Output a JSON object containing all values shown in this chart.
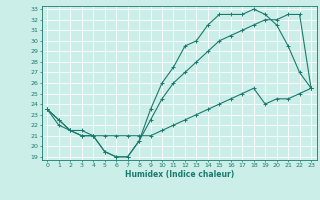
{
  "xlabel": "Humidex (Indice chaleur)",
  "bg_color": "#cceee8",
  "line_color": "#1a7a6e",
  "grid_color": "#ffffff",
  "ylim": [
    19,
    33
  ],
  "xlim": [
    -0.5,
    23.5
  ],
  "yticks": [
    19,
    20,
    21,
    22,
    23,
    24,
    25,
    26,
    27,
    28,
    29,
    30,
    31,
    32,
    33
  ],
  "xticks": [
    0,
    1,
    2,
    3,
    4,
    5,
    6,
    7,
    8,
    9,
    10,
    11,
    12,
    13,
    14,
    15,
    16,
    17,
    18,
    19,
    20,
    21,
    22,
    23
  ],
  "series1_x": [
    0,
    1,
    2,
    3,
    4,
    5,
    6,
    7,
    8,
    9,
    10,
    11,
    12,
    13,
    14,
    15,
    16,
    17,
    18,
    19,
    20,
    21,
    22,
    23
  ],
  "series1_y": [
    23.5,
    22.5,
    21.5,
    21.0,
    21.0,
    19.5,
    19.0,
    19.0,
    20.5,
    23.5,
    26.0,
    27.5,
    29.5,
    30.0,
    31.5,
    32.5,
    32.5,
    32.5,
    33.0,
    32.5,
    31.5,
    29.5,
    27.0,
    25.5
  ],
  "series2_x": [
    0,
    1,
    2,
    3,
    4,
    5,
    6,
    7,
    8,
    9,
    10,
    11,
    12,
    13,
    14,
    15,
    16,
    17,
    18,
    19,
    20,
    21,
    22,
    23
  ],
  "series2_y": [
    23.5,
    22.5,
    21.5,
    21.0,
    21.0,
    19.5,
    19.0,
    19.0,
    20.5,
    22.5,
    24.5,
    26.0,
    27.0,
    28.0,
    29.0,
    30.0,
    30.5,
    31.0,
    31.5,
    32.0,
    32.0,
    32.5,
    32.5,
    25.5
  ],
  "series3_x": [
    0,
    1,
    2,
    3,
    4,
    5,
    6,
    7,
    8,
    9,
    10,
    11,
    12,
    13,
    14,
    15,
    16,
    17,
    18,
    19,
    20,
    21,
    22,
    23
  ],
  "series3_y": [
    23.5,
    22.0,
    21.5,
    21.5,
    21.0,
    21.0,
    21.0,
    21.0,
    21.0,
    21.0,
    21.5,
    22.0,
    22.5,
    23.0,
    23.5,
    24.0,
    24.5,
    25.0,
    25.5,
    24.0,
    24.5,
    24.5,
    25.0,
    25.5
  ]
}
